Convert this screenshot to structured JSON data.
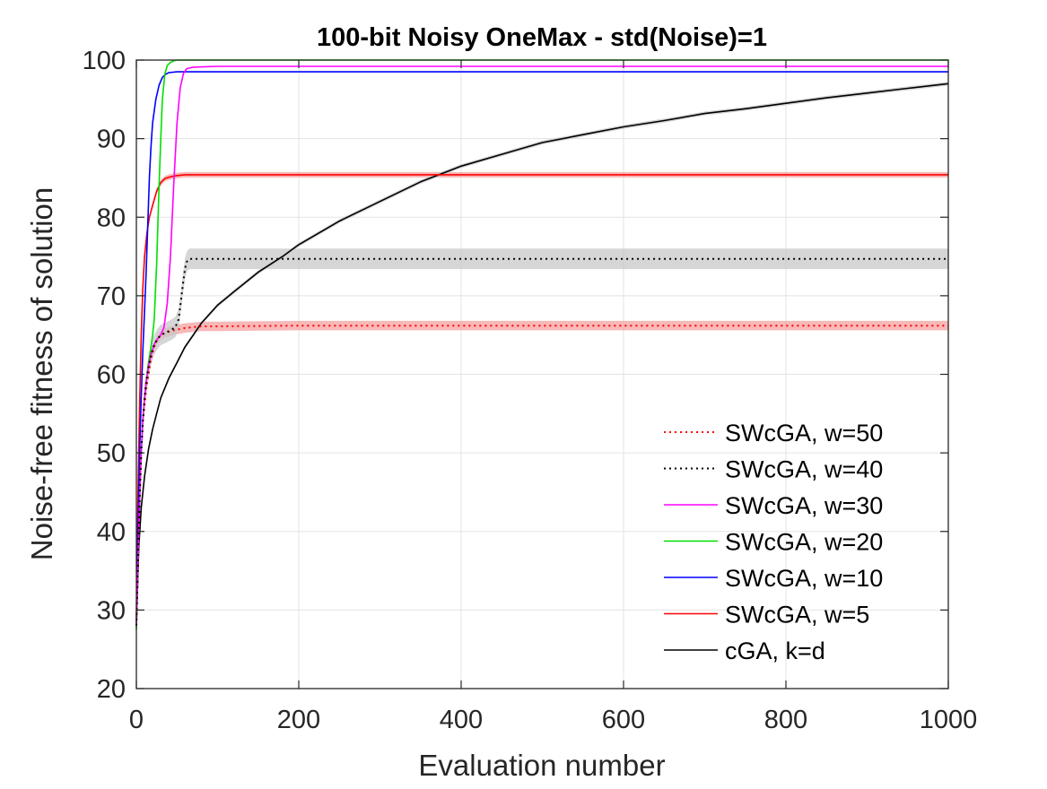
{
  "chart_data": {
    "type": "line",
    "title": "100-bit Noisy OneMax - std(Noise)=1",
    "xlabel": "Evaluation number",
    "ylabel": "Noise-free fitness of solution",
    "xlim": [
      0,
      1000
    ],
    "ylim": [
      20,
      100
    ],
    "xticks": [
      0,
      200,
      400,
      600,
      800,
      1000
    ],
    "yticks": [
      20,
      30,
      40,
      50,
      60,
      70,
      80,
      90,
      100
    ],
    "grid": true,
    "legend_position": "bottom-right",
    "series": [
      {
        "name": "SWcGA, w=50",
        "color": "#ff0000",
        "dash": "dotted",
        "band_color": "#f4a0a0",
        "band_halfwidth": 0.6,
        "x": [
          0,
          2,
          4,
          6,
          8,
          10,
          12,
          15,
          18,
          22,
          26,
          30,
          36,
          42,
          50,
          60,
          70,
          80,
          100,
          200,
          400,
          600,
          800,
          1000
        ],
        "y": [
          28,
          36,
          44,
          50,
          54,
          56,
          58,
          60,
          62,
          63.5,
          64.5,
          65,
          65.3,
          65.5,
          65.7,
          65.9,
          66.0,
          66.1,
          66.1,
          66.2,
          66.2,
          66.2,
          66.2,
          66.2
        ]
      },
      {
        "name": "SWcGA, w=40",
        "color": "#000000",
        "dash": "dotted",
        "band_color": "#c8c8c8",
        "band_halfwidth": 1.3,
        "x": [
          0,
          2,
          4,
          6,
          8,
          10,
          12,
          15,
          18,
          22,
          26,
          30,
          36,
          42,
          48,
          52,
          55,
          58,
          60,
          62,
          64,
          66,
          70,
          100,
          200,
          400,
          600,
          800,
          1000
        ],
        "y": [
          28,
          36,
          44,
          50,
          54,
          57,
          59,
          61,
          62.5,
          63.8,
          64.5,
          65,
          65.3,
          65.6,
          66,
          67,
          69.5,
          72,
          73.5,
          74.3,
          74.6,
          74.7,
          74.7,
          74.7,
          74.7,
          74.7,
          74.7,
          74.7,
          74.7
        ]
      },
      {
        "name": "SWcGA, w=30",
        "color": "#ff00ff",
        "dash": "solid",
        "band_color": null,
        "band_halfwidth": 0,
        "x": [
          0,
          2,
          4,
          6,
          8,
          10,
          12,
          15,
          18,
          22,
          26,
          30,
          34,
          38,
          42,
          46,
          50,
          54,
          58,
          62,
          70,
          100,
          200,
          400,
          600,
          800,
          1000
        ],
        "y": [
          28,
          36,
          44,
          50,
          54,
          57,
          59,
          61,
          62.5,
          63.8,
          64.5,
          65,
          66,
          69,
          75,
          84,
          92,
          96.5,
          98.3,
          98.9,
          99.1,
          99.2,
          99.2,
          99.2,
          99.2,
          99.2,
          99.2
        ]
      },
      {
        "name": "SWcGA, w=20",
        "color": "#00e000",
        "dash": "solid",
        "band_color": null,
        "band_halfwidth": 0,
        "x": [
          0,
          2,
          4,
          6,
          8,
          10,
          12,
          15,
          18,
          20,
          22,
          25,
          28,
          30,
          32,
          35,
          38,
          42,
          46,
          50,
          60,
          80,
          100,
          200,
          400,
          600,
          800,
          1000
        ],
        "y": [
          27.5,
          36,
          44,
          50,
          54,
          57,
          59,
          61.5,
          63.5,
          65,
          67,
          74,
          84,
          90,
          95,
          98.2,
          99.3,
          99.7,
          99.9,
          100,
          100,
          100,
          100,
          100,
          100,
          100,
          100,
          100
        ]
      },
      {
        "name": "SWcGA, w=10",
        "color": "#0000ff",
        "dash": "solid",
        "band_color": null,
        "band_halfwidth": 0,
        "x": [
          0,
          2,
          4,
          6,
          8,
          10,
          12,
          14,
          16,
          18,
          20,
          24,
          28,
          32,
          36,
          40,
          50,
          60,
          80,
          100,
          200,
          400,
          600,
          800,
          1000
        ],
        "y": [
          28,
          40,
          50,
          57,
          63,
          68,
          73,
          79,
          85,
          89,
          92,
          95,
          96.8,
          97.8,
          98.2,
          98.4,
          98.5,
          98.5,
          98.5,
          98.5,
          98.5,
          98.5,
          98.5,
          98.5,
          98.5
        ]
      },
      {
        "name": "SWcGA, w=5",
        "color": "#ff0000",
        "dash": "solid",
        "band_color": "#f4a0a0",
        "band_halfwidth": 0.35,
        "x": [
          0,
          2,
          4,
          6,
          8,
          10,
          13,
          16,
          20,
          25,
          30,
          35,
          40,
          50,
          60,
          80,
          100,
          200,
          400,
          600,
          800,
          1000
        ],
        "y": [
          29,
          45,
          56,
          65,
          71,
          75,
          78,
          80,
          81.5,
          83.3,
          84.4,
          84.9,
          85.1,
          85.3,
          85.4,
          85.4,
          85.4,
          85.4,
          85.4,
          85.4,
          85.4,
          85.4
        ]
      },
      {
        "name": "cGA, k=d",
        "color": "#000000",
        "dash": "solid",
        "band_color": "#c8c8c8",
        "band_halfwidth": 0.25,
        "x": [
          0,
          3,
          6,
          10,
          15,
          20,
          25,
          30,
          40,
          50,
          60,
          70,
          80,
          100,
          120,
          150,
          180,
          200,
          250,
          300,
          350,
          400,
          450,
          500,
          550,
          600,
          650,
          700,
          750,
          800,
          850,
          900,
          950,
          1000
        ],
        "y": [
          28,
          38,
          43,
          47,
          50.5,
          53,
          55,
          57,
          59.5,
          61.5,
          63.5,
          65,
          66.5,
          68.8,
          70.5,
          73,
          75,
          76.5,
          79.5,
          82,
          84.5,
          86.5,
          88,
          89.5,
          90.5,
          91.5,
          92.3,
          93.2,
          93.8,
          94.5,
          95.2,
          95.8,
          96.4,
          97
        ]
      }
    ]
  }
}
